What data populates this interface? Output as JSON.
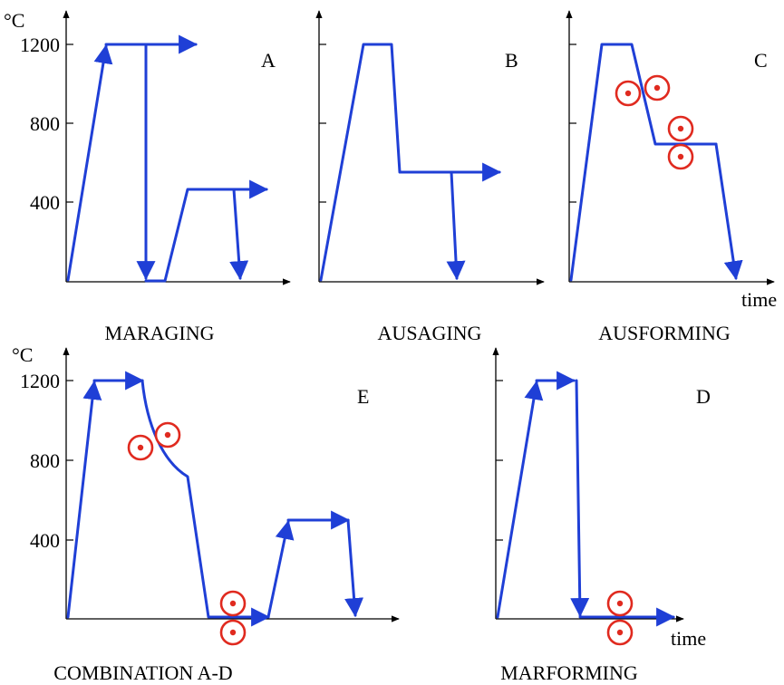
{
  "axes": {
    "unit": "°C",
    "ticks": [
      "1200",
      "800",
      "400"
    ],
    "time_label": "time"
  },
  "panels": [
    {
      "letter": "A",
      "caption": "MARAGING"
    },
    {
      "letter": "B",
      "caption": "AUSAGING"
    },
    {
      "letter": "C",
      "caption": "AUSFORMING"
    },
    {
      "letter": "E",
      "caption": "COMBINATION A-D"
    },
    {
      "letter": "D",
      "caption": "MARFORMING"
    }
  ],
  "colors": {
    "path": "#1f3fd6",
    "deformation_symbol": "#e02a1f",
    "axes": "#000000"
  }
}
